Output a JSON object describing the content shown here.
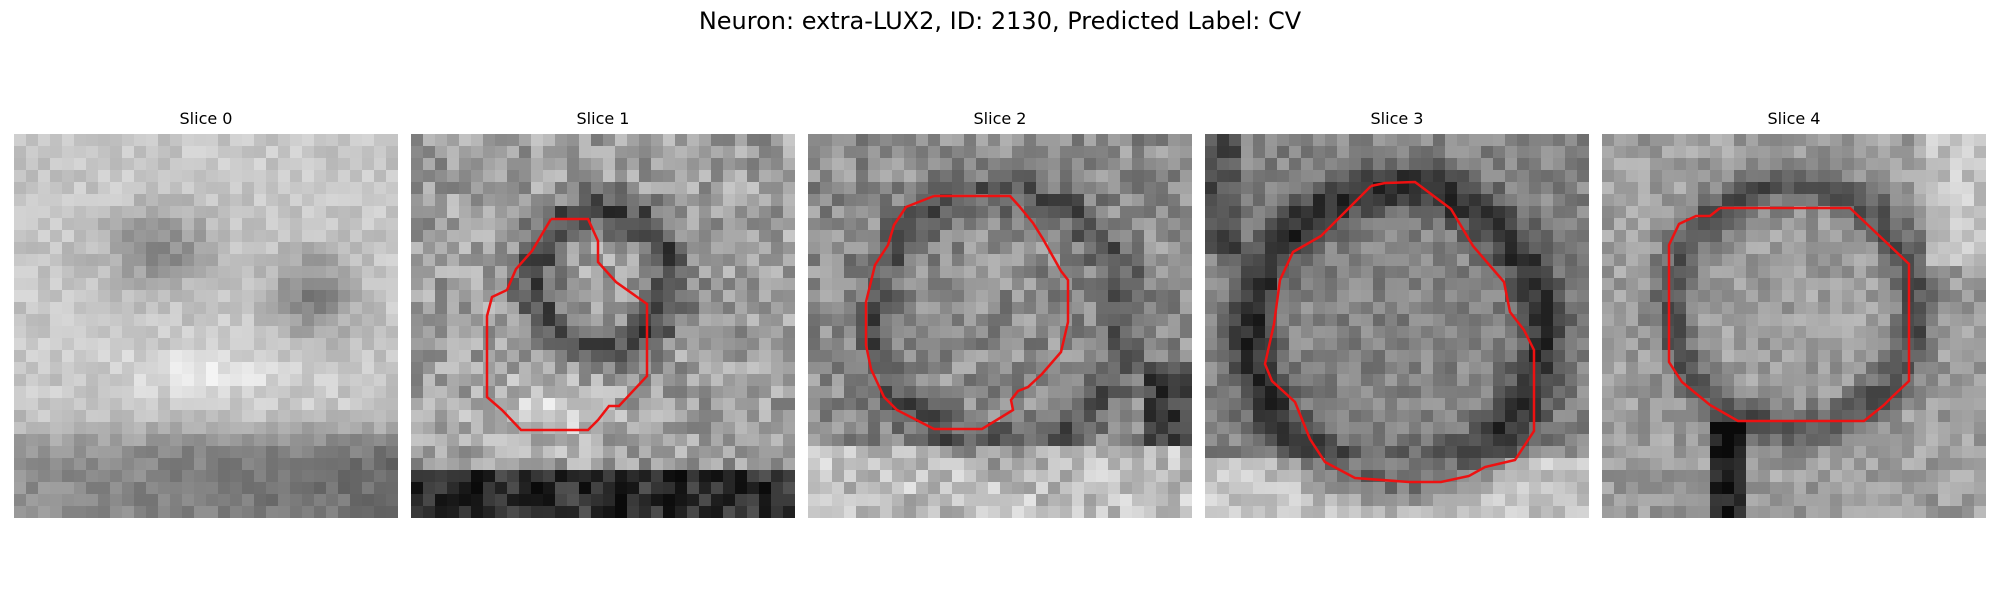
{
  "figure": {
    "title": "Neuron: extra-LUX2, ID: 2130, Predicted Label: CV"
  },
  "colors": {
    "contour": "#ee1111",
    "background": "#ffffff"
  },
  "panels": [
    {
      "title": "Slice 0",
      "image": "grayscale microscopy patch, bright textured background with dark band near bottom",
      "has_contour": false
    },
    {
      "title": "Slice 1",
      "image": "grayscale microscopy patch with dark ring structure",
      "has_contour": true
    },
    {
      "title": "Slice 2",
      "image": "grayscale microscopy patch with round cell body",
      "has_contour": true
    },
    {
      "title": "Slice 3",
      "image": "grayscale microscopy patch with large round cell body and dark border",
      "has_contour": true
    },
    {
      "title": "Slice 4",
      "image": "grayscale microscopy patch with round cell body and dark process below",
      "has_contour": true
    }
  ]
}
